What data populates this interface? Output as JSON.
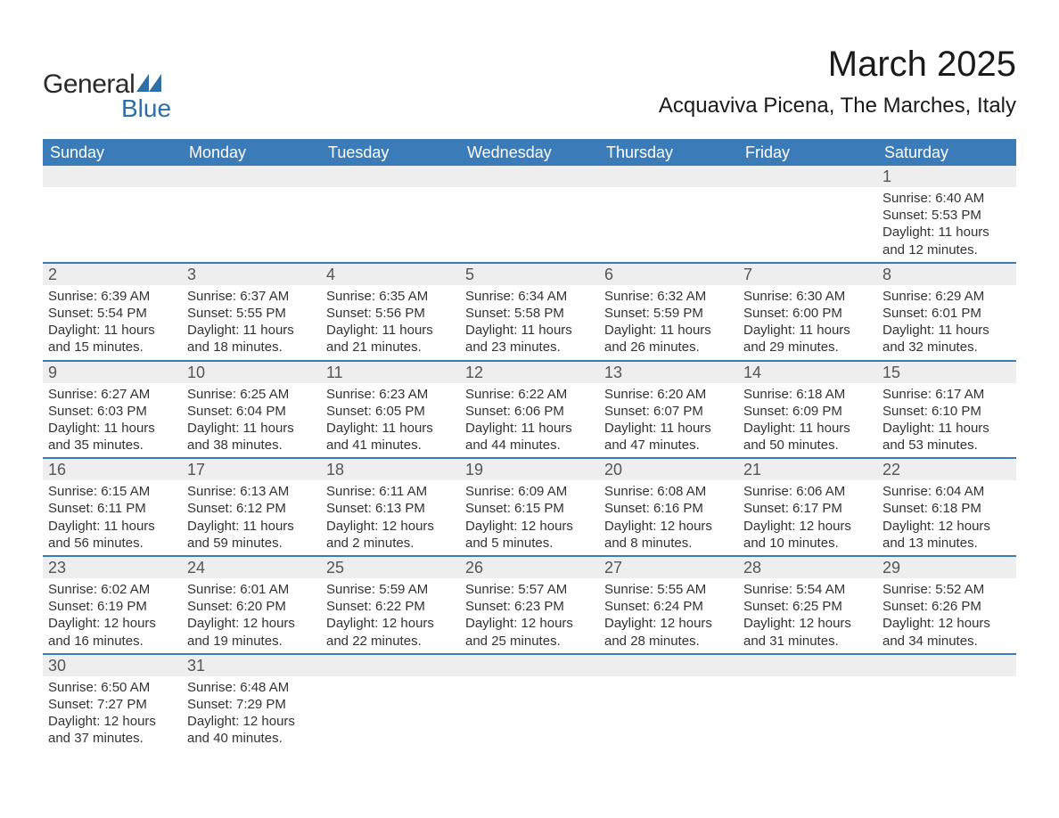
{
  "header": {
    "logo_text_1": "General",
    "logo_text_2": "Blue",
    "logo_accent_color": "#2f6fa8",
    "month_title": "March 2025",
    "location": "Acquaviva Picena, The Marches, Italy"
  },
  "calendar": {
    "header_bg": "#3a7bb8",
    "header_fg": "#ffffff",
    "row_divider_color": "#3a7bb8",
    "daynum_bg": "#eeeeee",
    "text_color": "#333333",
    "day_headers": [
      "Sunday",
      "Monday",
      "Tuesday",
      "Wednesday",
      "Thursday",
      "Friday",
      "Saturday"
    ],
    "weeks": [
      [
        {
          "day": "",
          "lines": []
        },
        {
          "day": "",
          "lines": []
        },
        {
          "day": "",
          "lines": []
        },
        {
          "day": "",
          "lines": []
        },
        {
          "day": "",
          "lines": []
        },
        {
          "day": "",
          "lines": []
        },
        {
          "day": "1",
          "lines": [
            "Sunrise: 6:40 AM",
            "Sunset: 5:53 PM",
            "Daylight: 11 hours and 12 minutes."
          ]
        }
      ],
      [
        {
          "day": "2",
          "lines": [
            "Sunrise: 6:39 AM",
            "Sunset: 5:54 PM",
            "Daylight: 11 hours and 15 minutes."
          ]
        },
        {
          "day": "3",
          "lines": [
            "Sunrise: 6:37 AM",
            "Sunset: 5:55 PM",
            "Daylight: 11 hours and 18 minutes."
          ]
        },
        {
          "day": "4",
          "lines": [
            "Sunrise: 6:35 AM",
            "Sunset: 5:56 PM",
            "Daylight: 11 hours and 21 minutes."
          ]
        },
        {
          "day": "5",
          "lines": [
            "Sunrise: 6:34 AM",
            "Sunset: 5:58 PM",
            "Daylight: 11 hours and 23 minutes."
          ]
        },
        {
          "day": "6",
          "lines": [
            "Sunrise: 6:32 AM",
            "Sunset: 5:59 PM",
            "Daylight: 11 hours and 26 minutes."
          ]
        },
        {
          "day": "7",
          "lines": [
            "Sunrise: 6:30 AM",
            "Sunset: 6:00 PM",
            "Daylight: 11 hours and 29 minutes."
          ]
        },
        {
          "day": "8",
          "lines": [
            "Sunrise: 6:29 AM",
            "Sunset: 6:01 PM",
            "Daylight: 11 hours and 32 minutes."
          ]
        }
      ],
      [
        {
          "day": "9",
          "lines": [
            "Sunrise: 6:27 AM",
            "Sunset: 6:03 PM",
            "Daylight: 11 hours and 35 minutes."
          ]
        },
        {
          "day": "10",
          "lines": [
            "Sunrise: 6:25 AM",
            "Sunset: 6:04 PM",
            "Daylight: 11 hours and 38 minutes."
          ]
        },
        {
          "day": "11",
          "lines": [
            "Sunrise: 6:23 AM",
            "Sunset: 6:05 PM",
            "Daylight: 11 hours and 41 minutes."
          ]
        },
        {
          "day": "12",
          "lines": [
            "Sunrise: 6:22 AM",
            "Sunset: 6:06 PM",
            "Daylight: 11 hours and 44 minutes."
          ]
        },
        {
          "day": "13",
          "lines": [
            "Sunrise: 6:20 AM",
            "Sunset: 6:07 PM",
            "Daylight: 11 hours and 47 minutes."
          ]
        },
        {
          "day": "14",
          "lines": [
            "Sunrise: 6:18 AM",
            "Sunset: 6:09 PM",
            "Daylight: 11 hours and 50 minutes."
          ]
        },
        {
          "day": "15",
          "lines": [
            "Sunrise: 6:17 AM",
            "Sunset: 6:10 PM",
            "Daylight: 11 hours and 53 minutes."
          ]
        }
      ],
      [
        {
          "day": "16",
          "lines": [
            "Sunrise: 6:15 AM",
            "Sunset: 6:11 PM",
            "Daylight: 11 hours and 56 minutes."
          ]
        },
        {
          "day": "17",
          "lines": [
            "Sunrise: 6:13 AM",
            "Sunset: 6:12 PM",
            "Daylight: 11 hours and 59 minutes."
          ]
        },
        {
          "day": "18",
          "lines": [
            "Sunrise: 6:11 AM",
            "Sunset: 6:13 PM",
            "Daylight: 12 hours and 2 minutes."
          ]
        },
        {
          "day": "19",
          "lines": [
            "Sunrise: 6:09 AM",
            "Sunset: 6:15 PM",
            "Daylight: 12 hours and 5 minutes."
          ]
        },
        {
          "day": "20",
          "lines": [
            "Sunrise: 6:08 AM",
            "Sunset: 6:16 PM",
            "Daylight: 12 hours and 8 minutes."
          ]
        },
        {
          "day": "21",
          "lines": [
            "Sunrise: 6:06 AM",
            "Sunset: 6:17 PM",
            "Daylight: 12 hours and 10 minutes."
          ]
        },
        {
          "day": "22",
          "lines": [
            "Sunrise: 6:04 AM",
            "Sunset: 6:18 PM",
            "Daylight: 12 hours and 13 minutes."
          ]
        }
      ],
      [
        {
          "day": "23",
          "lines": [
            "Sunrise: 6:02 AM",
            "Sunset: 6:19 PM",
            "Daylight: 12 hours and 16 minutes."
          ]
        },
        {
          "day": "24",
          "lines": [
            "Sunrise: 6:01 AM",
            "Sunset: 6:20 PM",
            "Daylight: 12 hours and 19 minutes."
          ]
        },
        {
          "day": "25",
          "lines": [
            "Sunrise: 5:59 AM",
            "Sunset: 6:22 PM",
            "Daylight: 12 hours and 22 minutes."
          ]
        },
        {
          "day": "26",
          "lines": [
            "Sunrise: 5:57 AM",
            "Sunset: 6:23 PM",
            "Daylight: 12 hours and 25 minutes."
          ]
        },
        {
          "day": "27",
          "lines": [
            "Sunrise: 5:55 AM",
            "Sunset: 6:24 PM",
            "Daylight: 12 hours and 28 minutes."
          ]
        },
        {
          "day": "28",
          "lines": [
            "Sunrise: 5:54 AM",
            "Sunset: 6:25 PM",
            "Daylight: 12 hours and 31 minutes."
          ]
        },
        {
          "day": "29",
          "lines": [
            "Sunrise: 5:52 AM",
            "Sunset: 6:26 PM",
            "Daylight: 12 hours and 34 minutes."
          ]
        }
      ],
      [
        {
          "day": "30",
          "lines": [
            "Sunrise: 6:50 AM",
            "Sunset: 7:27 PM",
            "Daylight: 12 hours and 37 minutes."
          ]
        },
        {
          "day": "31",
          "lines": [
            "Sunrise: 6:48 AM",
            "Sunset: 7:29 PM",
            "Daylight: 12 hours and 40 minutes."
          ]
        },
        {
          "day": "",
          "lines": []
        },
        {
          "day": "",
          "lines": []
        },
        {
          "day": "",
          "lines": []
        },
        {
          "day": "",
          "lines": []
        },
        {
          "day": "",
          "lines": []
        }
      ]
    ]
  }
}
